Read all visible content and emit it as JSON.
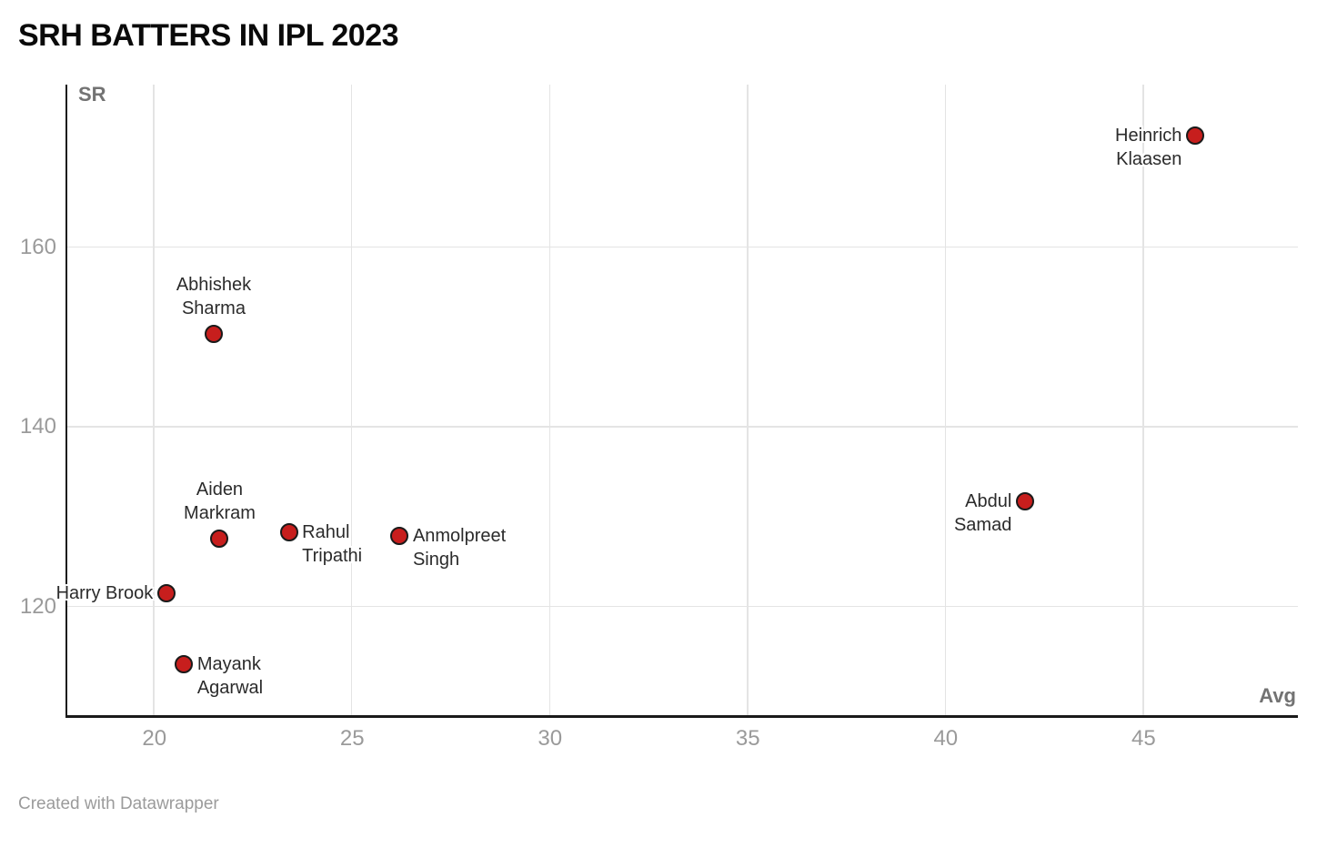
{
  "title": "SRH BATTERS IN IPL 2023",
  "footer": "Created with Datawrapper",
  "chart_data": {
    "type": "scatter",
    "title": "SRH BATTERS IN IPL 2023",
    "xlabel": "Avg",
    "ylabel": "SR",
    "xlim": [
      17.8,
      48.9
    ],
    "ylim": [
      107.9,
      178.1
    ],
    "x_ticks": [
      20,
      25,
      30,
      35,
      40,
      45
    ],
    "y_ticks": [
      120,
      140,
      160
    ],
    "grid": true,
    "legend": "none",
    "marker_fill": "#c71e1d",
    "marker_stroke": "#1a1a1a",
    "points": [
      {
        "name": "Harry Brook",
        "label_lines": [
          "Harry Brook"
        ],
        "avg": 20.3,
        "sr": 121.5,
        "label_position": "left"
      },
      {
        "name": "Mayank Agarwal",
        "label_lines": [
          "Mayank",
          "Agarwal"
        ],
        "avg": 20.75,
        "sr": 113.6,
        "label_position": "right"
      },
      {
        "name": "Abhishek Sharma",
        "label_lines": [
          "Abhishek",
          "Sharma"
        ],
        "avg": 21.5,
        "sr": 150.3,
        "label_position": "above"
      },
      {
        "name": "Aiden Markram",
        "label_lines": [
          "Aiden",
          "Markram"
        ],
        "avg": 21.65,
        "sr": 127.6,
        "label_position": "above"
      },
      {
        "name": "Rahul Tripathi",
        "label_lines": [
          "Rahul",
          "Tripathi"
        ],
        "avg": 23.4,
        "sr": 128.3,
        "label_position": "right"
      },
      {
        "name": "Anmolpreet Singh",
        "label_lines": [
          "Anmolpreet",
          "Singh"
        ],
        "avg": 26.2,
        "sr": 127.9,
        "label_position": "right"
      },
      {
        "name": "Abdul Samad",
        "label_lines": [
          "Abdul",
          "Samad"
        ],
        "avg": 42.0,
        "sr": 131.7,
        "label_position": "left"
      },
      {
        "name": "Heinrich Klaasen",
        "label_lines": [
          "Heinrich",
          "Klaasen"
        ],
        "avg": 46.3,
        "sr": 172.4,
        "label_position": "left"
      }
    ]
  },
  "colors": {
    "background": "#ffffff",
    "axis_line": "#1a1a1a",
    "gridline": "#e4e4e4",
    "tick_label": "#9a9a9a",
    "axis_title": "#737373",
    "point_fill": "#c71e1d",
    "point_stroke": "#1a1a1a",
    "data_label": "#2b2b2b",
    "title_color": "#0a0a0a",
    "footer_color": "#9b9b9b"
  }
}
